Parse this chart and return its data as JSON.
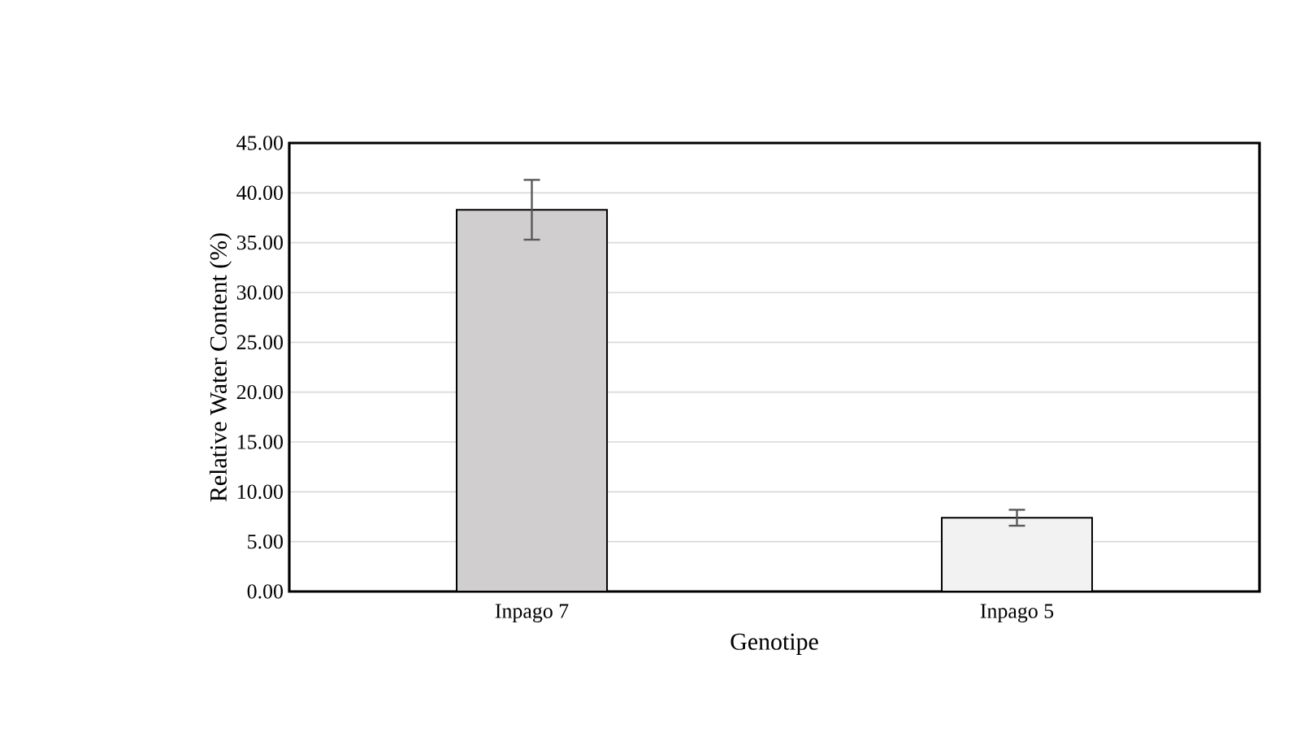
{
  "chart_data": {
    "type": "bar",
    "xlabel": "Genotipe",
    "ylabel": "Relative Water Content (%)",
    "categories": [
      "Inpago 7",
      "Inpago 5"
    ],
    "values": [
      38.3,
      7.4
    ],
    "errors": [
      3.0,
      0.8
    ],
    "colors": [
      "#d0cece",
      "#f2f2f2"
    ],
    "ylim": [
      0,
      45
    ],
    "yticks": [
      {
        "value": 0,
        "label": "0.00"
      },
      {
        "value": 5,
        "label": "5.00"
      },
      {
        "value": 10,
        "label": "10.00"
      },
      {
        "value": 15,
        "label": "15.00"
      },
      {
        "value": 20,
        "label": "20.00"
      },
      {
        "value": 25,
        "label": "25.00"
      },
      {
        "value": 30,
        "label": "30.00"
      },
      {
        "value": 35,
        "label": "35.00"
      },
      {
        "value": 40,
        "label": "40.00"
      },
      {
        "value": 45,
        "label": "45.00"
      }
    ],
    "grid": "y"
  }
}
